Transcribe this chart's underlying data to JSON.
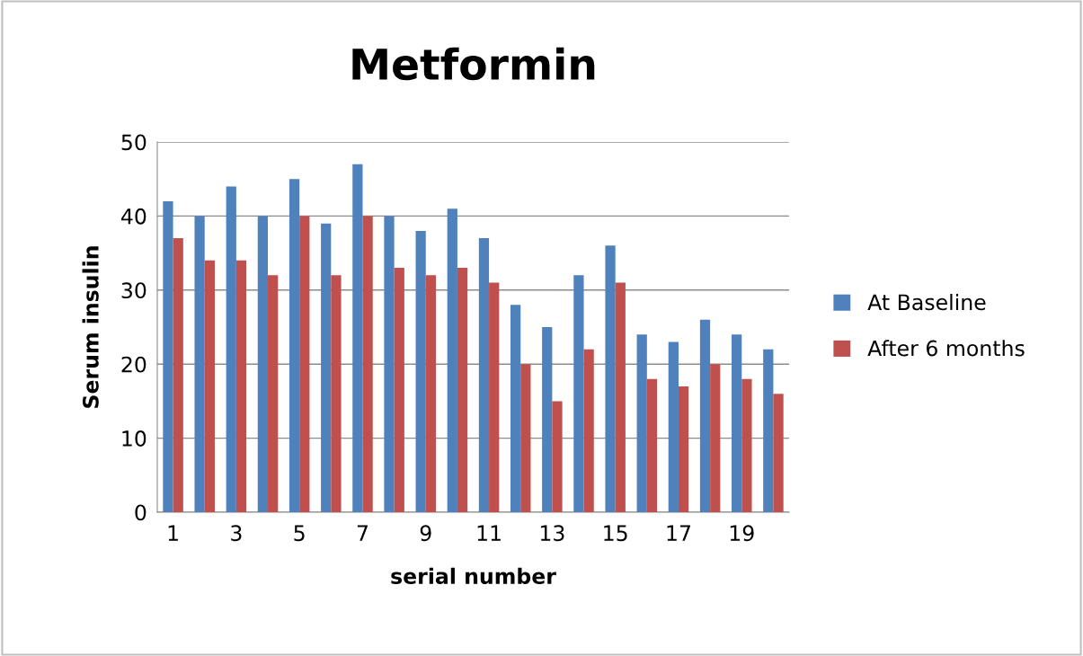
{
  "chart_data": {
    "type": "bar",
    "title": "Metformin",
    "xlabel": "serial number",
    "ylabel": "Serum insulin",
    "categories": [
      "1",
      null,
      "3",
      null,
      "5",
      null,
      "7",
      null,
      "9",
      null,
      "11",
      null,
      "13",
      null,
      "15",
      null,
      "17",
      null,
      "19",
      null
    ],
    "series": [
      {
        "name": "At Baseline",
        "color": "#4f81bd",
        "values": [
          42,
          40,
          44,
          40,
          45,
          39,
          47,
          40,
          38,
          41,
          37,
          28,
          25,
          32,
          36,
          24,
          23,
          26,
          24,
          22
        ]
      },
      {
        "name": "After 6 months",
        "color": "#c0504d",
        "values": [
          37,
          34,
          34,
          32,
          40,
          32,
          40,
          33,
          32,
          33,
          31,
          20,
          15,
          22,
          31,
          18,
          17,
          20,
          18,
          16
        ]
      }
    ],
    "ylim": [
      0,
      50
    ],
    "yticks": [
      0,
      10,
      20,
      30,
      40,
      50
    ],
    "grid": "y",
    "legend": "right"
  }
}
